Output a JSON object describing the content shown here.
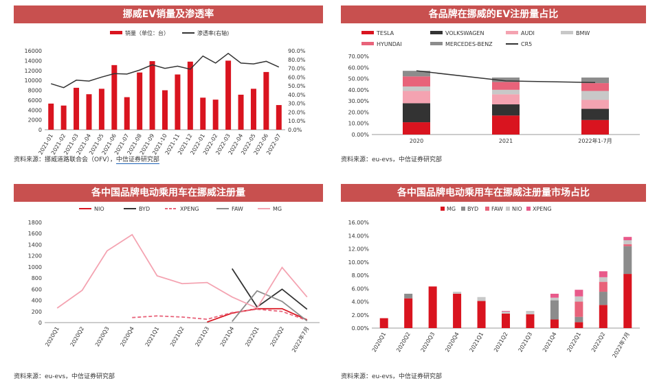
{
  "colors": {
    "header": "#c8504f",
    "red": "#d9141f",
    "black": "#333333",
    "pink": "#f4a3b1",
    "lightpink": "#f7c6cf",
    "gray": "#8c8c8c",
    "lightgray": "#c8c8c8",
    "rose": "#e8637a"
  },
  "panels": [
    {
      "title": "挪威EV销量及渗透率",
      "source": "资料来源：挪威道路联合会（OFV），中信证券研究部",
      "source_plain": "资料来源：挪威道路联合会（OFV），",
      "source_link": "中信证券研究部"
    },
    {
      "title": "各品牌在挪威的EV注册量占比",
      "source": "资料来源：eu-evs，中信证券研究部"
    },
    {
      "title": "各中国品牌电动乘用车在挪威注册量",
      "source": "资料来源：eu-evs，中信证券研究部"
    },
    {
      "title": "各中国品牌电动乘用车在挪威注册量市场占比",
      "source": "资料来源：eu-evs，中信证券研究部"
    }
  ],
  "chart_data": [
    {
      "type": "bar",
      "categories": [
        "2021-01",
        "2021-02",
        "2021-03",
        "2021-04",
        "2021-05",
        "2021-06",
        "2021-07",
        "2021-08",
        "2021-09",
        "2021-10",
        "2021-11",
        "2021-12",
        "2022-01",
        "2022-02",
        "2022-03",
        "2022-04",
        "2022-05",
        "2022-06",
        "2022-07"
      ],
      "series": [
        {
          "name": "销量（单位：台）",
          "type": "bar",
          "axis": "left",
          "values": [
            5300,
            4900,
            8500,
            7200,
            8300,
            13100,
            6600,
            11600,
            13900,
            8000,
            11200,
            13800,
            6500,
            6100,
            14000,
            7100,
            8300,
            11700,
            5000
          ]
        },
        {
          "name": "渗透率(右轴)",
          "type": "line",
          "axis": "right",
          "values": [
            52.5,
            48,
            56.5,
            55.5,
            60,
            64,
            63.5,
            68,
            74,
            70,
            72.5,
            69,
            84,
            76,
            87,
            76,
            75,
            78,
            71.5
          ]
        }
      ],
      "ylim": [
        0,
        16000
      ],
      "y_ticks": [
        "0",
        "2000",
        "4000",
        "6000",
        "8000",
        "10000",
        "12000",
        "14000",
        "16000"
      ],
      "y2lim": [
        0,
        90
      ],
      "y2_ticks": [
        "0.0%",
        "10.0%",
        "20.0%",
        "30.0%",
        "40.0%",
        "50.0%",
        "60.0%",
        "70.0%",
        "80.0%",
        "90.0%"
      ],
      "legend": "top"
    },
    {
      "type": "bar",
      "stacked": true,
      "categories": [
        "2020",
        "2021",
        "2022年1-7月"
      ],
      "series": [
        {
          "name": "TESLA",
          "values": [
            11,
            17,
            13
          ]
        },
        {
          "name": "VOLKSWAGEN",
          "values": [
            17,
            10,
            10
          ]
        },
        {
          "name": "AUDI",
          "values": [
            11,
            9,
            8
          ]
        },
        {
          "name": "BMW",
          "values": [
            4,
            4,
            8
          ]
        },
        {
          "name": "HYUNDAI",
          "values": [
            9,
            7,
            7
          ]
        },
        {
          "name": "MERCEDES-BENZ",
          "values": [
            5,
            4,
            5
          ]
        },
        {
          "name": "CR5",
          "type": "line",
          "values": [
            57,
            48,
            46.5
          ]
        }
      ],
      "ylim": [
        0,
        70
      ],
      "y_ticks": [
        "0.00%",
        "10.00%",
        "20.00%",
        "30.00%",
        "40.00%",
        "50.00%",
        "60.00%",
        "70.00%"
      ],
      "legend": "top"
    },
    {
      "type": "line",
      "categories": [
        "2020Q1",
        "2020Q2",
        "2020Q3",
        "2020Q4",
        "2021Q1",
        "2021Q2",
        "2021Q3",
        "2021Q4",
        "2022Q1",
        "2022Q2",
        "2022年7月"
      ],
      "series": [
        {
          "name": "NIO",
          "values": [
            null,
            null,
            null,
            null,
            null,
            null,
            10,
            170,
            250,
            250,
            50
          ]
        },
        {
          "name": "BYD",
          "values": [
            null,
            null,
            null,
            null,
            null,
            null,
            null,
            970,
            280,
            600,
            240
          ]
        },
        {
          "name": "XPENG",
          "values": [
            null,
            null,
            null,
            90,
            120,
            100,
            60,
            180,
            240,
            200,
            40
          ]
        },
        {
          "name": "FAW",
          "values": [
            null,
            null,
            null,
            null,
            null,
            null,
            null,
            20,
            570,
            380,
            30
          ]
        },
        {
          "name": "MG",
          "values": [
            260,
            580,
            1290,
            1580,
            840,
            700,
            720,
            460,
            260,
            990,
            460
          ]
        }
      ],
      "ylim": [
        0,
        1800
      ],
      "y_ticks": [
        "0",
        "200",
        "400",
        "600",
        "800",
        "1000",
        "1200",
        "1400",
        "1600",
        "1800"
      ],
      "legend": "top"
    },
    {
      "type": "bar",
      "stacked": true,
      "categories": [
        "2020Q1",
        "2020Q2",
        "2020Q3",
        "2020Q4",
        "2021Q1",
        "2021Q2",
        "2021Q3",
        "2021Q4",
        "2022Q1",
        "2022Q2",
        "2022年7月"
      ],
      "series": [
        {
          "name": "MG",
          "values": [
            1.5,
            4.5,
            6.3,
            5.2,
            4.1,
            2.2,
            2.1,
            1.3,
            0.9,
            3.5,
            8.2
          ]
        },
        {
          "name": "BYD",
          "values": [
            0,
            0.7,
            0,
            0,
            0,
            0,
            0,
            2.9,
            0.8,
            2.0,
            4.2
          ]
        },
        {
          "name": "FAW",
          "values": [
            0,
            0,
            0,
            0,
            0,
            0,
            0,
            0,
            2.3,
            1.5,
            0.3
          ]
        },
        {
          "name": "NIO",
          "values": [
            0,
            0,
            0,
            0.3,
            0.6,
            0.3,
            0.5,
            0.4,
            0.8,
            0.7,
            0.6
          ]
        },
        {
          "name": "XPENG",
          "values": [
            0,
            0,
            0,
            0,
            0,
            0.1,
            0,
            0.6,
            1.0,
            0.9,
            0.5
          ]
        }
      ],
      "ylim": [
        0,
        16
      ],
      "y_ticks": [
        "0.00%",
        "2.00%",
        "4.00%",
        "6.00%",
        "8.00%",
        "10.00%",
        "12.00%",
        "14.00%",
        "16.00%"
      ],
      "legend": "top"
    }
  ]
}
